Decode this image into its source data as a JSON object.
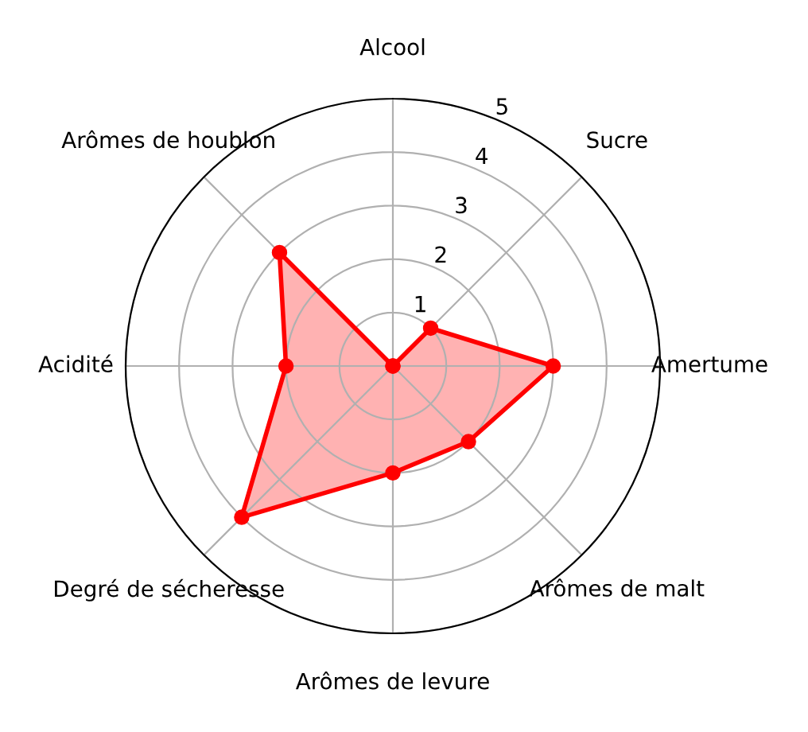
{
  "chart_data": {
    "type": "radar",
    "categories": [
      "Alcool",
      "Sucre",
      "Amertume",
      "Arômes de malt",
      "Arômes de levure",
      "Degré de sécheresse",
      "Acidité",
      "Arômes de houblon"
    ],
    "series": [
      {
        "color": "#ff0000",
        "values": [
          0,
          1,
          3,
          2,
          2,
          4,
          2,
          3
        ]
      }
    ],
    "ylim": [
      0,
      5
    ],
    "yticks": [
      1,
      2,
      3,
      4,
      5
    ],
    "grid": true,
    "marker": "circle",
    "line_style": "solid"
  }
}
